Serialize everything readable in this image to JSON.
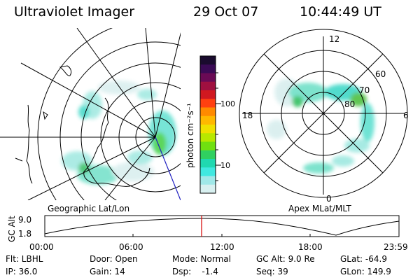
{
  "header": {
    "title": "Ultraviolet Imager",
    "date": "29 Oct 07",
    "time": "10:44:49 UT"
  },
  "geo_panel": {
    "caption": "Geographic Lat/Lon"
  },
  "polar_panel": {
    "caption": "Apex MLat/MLT",
    "mlt_labels": [
      "12",
      "18",
      "6",
      "0"
    ],
    "lat_labels": [
      "60",
      "70",
      "80"
    ]
  },
  "colorbar": {
    "unit_label": "photon cm⁻²s⁻¹",
    "tick_labels": [
      "100",
      "10"
    ],
    "colors": [
      "#1a0b2e",
      "#3a0a55",
      "#6a0a55",
      "#a01040",
      "#d01820",
      "#ff4010",
      "#ff8a00",
      "#ffb800",
      "#f0e000",
      "#b8e800",
      "#70e010",
      "#30d060",
      "#20d8b0",
      "#40e8e0",
      "#a0e8e8",
      "#d8f0f0"
    ]
  },
  "altitude_plot": {
    "ylabel": "GC Alt",
    "yticks": [
      "9.0",
      "1.8"
    ],
    "xticks": [
      "00:00",
      "06:00",
      "12:00",
      "18:00",
      "23:59"
    ],
    "marker_time": "10:44:49"
  },
  "info": {
    "flt": "Flt: LBHL",
    "ip": "IP: 36.0",
    "door": "Door: Open",
    "gain": "Gain: 14",
    "mode": "Mode: Normal",
    "dsp": "Dsp:    -1.4",
    "gcalt": "GC Alt: 9.0 Re",
    "seq": "Seq: 39",
    "glat": "GLat: -64.9",
    "glon": "GLon: 149.9"
  },
  "colors": {
    "marker": "#d81010",
    "meridian": "#2020c0",
    "aurora": "#40e0d0"
  }
}
